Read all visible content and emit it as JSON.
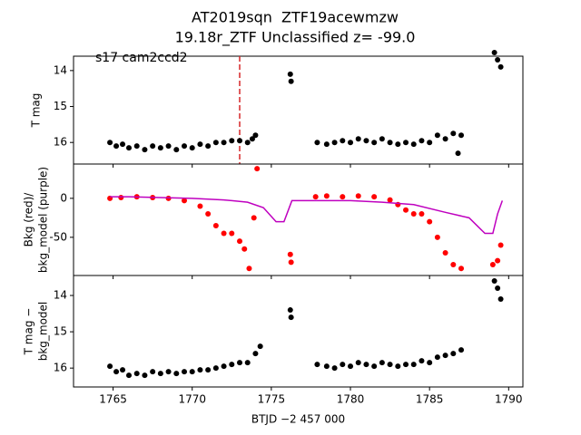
{
  "chart_data": [
    {
      "type": "scatter",
      "title": [
        "AT2019sqn  ZTF19acewmzw",
        "19.18r_ZTF Unclassified z= -99.0"
      ],
      "annotation": "s17 cam2ccd2",
      "ylabel": [
        "T mag"
      ],
      "xlim": [
        1762.5,
        1790.9
      ],
      "xticks": [
        1765,
        1770,
        1775,
        1780,
        1785,
        1790
      ],
      "ylim": [
        16.6,
        13.6
      ],
      "yticks": [
        14,
        15,
        16
      ],
      "vline": {
        "x": 1773.0,
        "color": "#d62728"
      },
      "x": [
        1764.8,
        1765.2,
        1765.6,
        1766.0,
        1766.5,
        1767.0,
        1767.5,
        1768.0,
        1768.5,
        1769.0,
        1769.5,
        1770.0,
        1770.5,
        1771.0,
        1771.5,
        1772.0,
        1772.5,
        1773.0,
        1773.5,
        1773.8,
        1774.0,
        1776.2,
        1776.25,
        1777.9,
        1778.5,
        1779.0,
        1779.5,
        1780.0,
        1780.5,
        1781.0,
        1781.5,
        1782.0,
        1782.5,
        1783.0,
        1783.5,
        1784.0,
        1784.5,
        1785.0,
        1785.5,
        1786.0,
        1786.5,
        1787.0,
        1786.8,
        1789.1,
        1789.3,
        1789.5
      ],
      "series": [
        {
          "color": "#000000",
          "style": "points",
          "values": [
            16.0,
            16.1,
            16.05,
            16.15,
            16.1,
            16.2,
            16.1,
            16.15,
            16.1,
            16.2,
            16.1,
            16.15,
            16.05,
            16.1,
            16.0,
            16.0,
            15.95,
            15.95,
            16.0,
            15.9,
            15.8,
            14.1,
            14.3,
            16.0,
            16.05,
            16.0,
            15.95,
            16.0,
            15.9,
            15.95,
            16.0,
            15.9,
            16.0,
            16.05,
            16.0,
            16.05,
            15.95,
            16.0,
            15.8,
            15.9,
            15.75,
            15.8,
            16.3,
            13.5,
            13.7,
            13.9
          ]
        }
      ]
    },
    {
      "type": "scatter",
      "ylabel": [
        "Bkg (red)/",
        "bkg_model (purple)"
      ],
      "xlim": [
        1762.5,
        1790.9
      ],
      "xticks": [
        1765,
        1770,
        1775,
        1780,
        1785,
        1790
      ],
      "ylim": [
        -99,
        44
      ],
      "yticks": [
        0,
        -50
      ],
      "x": [
        1764.8,
        1765.5,
        1766.5,
        1767.5,
        1768.5,
        1769.5,
        1770.5,
        1771.0,
        1771.5,
        1772.0,
        1772.5,
        1773.0,
        1773.3,
        1773.6,
        1773.9,
        1774.1,
        1776.2,
        1776.25,
        1777.8,
        1778.5,
        1779.5,
        1780.5,
        1781.5,
        1782.5,
        1783.0,
        1783.5,
        1784.0,
        1784.5,
        1785.0,
        1785.5,
        1786.0,
        1786.5,
        1787.0,
        1789.0,
        1789.3,
        1789.5
      ],
      "series": [
        {
          "color": "#ff0000",
          "style": "points",
          "values": [
            0,
            1,
            2,
            1,
            0,
            -3,
            -10,
            -20,
            -35,
            -45,
            -45,
            -55,
            -65,
            -90,
            -25,
            38,
            -72,
            -82,
            2,
            3,
            2,
            3,
            2,
            -2,
            -8,
            -15,
            -20,
            -20,
            -30,
            -50,
            -70,
            -85,
            -90,
            -85,
            -80,
            -60
          ]
        },
        {
          "color": "#bf00bf",
          "style": "line",
          "x": [
            1764.8,
            1766,
            1768,
            1770,
            1772,
            1773.5,
            1774.5,
            1775.3,
            1775.8,
            1776.3,
            1778,
            1780,
            1782,
            1784,
            1786,
            1787.5,
            1788.5,
            1789,
            1789.3,
            1789.6
          ],
          "values": [
            2,
            2,
            1,
            0,
            -2,
            -5,
            -12,
            -30,
            -30,
            -3,
            -3,
            -3,
            -5,
            -8,
            -18,
            -25,
            -45,
            -45,
            -20,
            -3
          ]
        }
      ]
    },
    {
      "type": "scatter",
      "ylabel": [
        "T mag −",
        "bkg_model"
      ],
      "xlabel": "BTJD −2 457 000",
      "xlim": [
        1762.5,
        1790.9
      ],
      "xticks": [
        1765,
        1770,
        1775,
        1780,
        1785,
        1790
      ],
      "ylim": [
        16.52,
        13.45
      ],
      "yticks": [
        14,
        15,
        16
      ],
      "x": [
        1764.8,
        1765.2,
        1765.6,
        1766.0,
        1766.5,
        1767.0,
        1767.5,
        1768.0,
        1768.5,
        1769.0,
        1769.5,
        1770.0,
        1770.5,
        1771.0,
        1771.5,
        1772.0,
        1772.5,
        1773.0,
        1773.5,
        1774.0,
        1774.3,
        1776.2,
        1776.25,
        1777.9,
        1778.5,
        1779.0,
        1779.5,
        1780.0,
        1780.5,
        1781.0,
        1781.5,
        1782.0,
        1782.5,
        1783.0,
        1783.5,
        1784.0,
        1784.5,
        1785.0,
        1785.5,
        1786.0,
        1786.5,
        1787.0,
        1789.1,
        1789.3,
        1789.5
      ],
      "series": [
        {
          "color": "#000000",
          "style": "points",
          "values": [
            15.95,
            16.1,
            16.05,
            16.2,
            16.15,
            16.2,
            16.1,
            16.15,
            16.1,
            16.15,
            16.1,
            16.1,
            16.05,
            16.05,
            16.0,
            15.95,
            15.9,
            15.85,
            15.85,
            15.6,
            15.4,
            14.4,
            14.6,
            15.9,
            15.95,
            16.0,
            15.9,
            15.95,
            15.85,
            15.9,
            15.95,
            15.85,
            15.9,
            15.95,
            15.9,
            15.9,
            15.8,
            15.85,
            15.7,
            15.65,
            15.6,
            15.5,
            13.6,
            13.8,
            14.1
          ]
        }
      ]
    }
  ]
}
